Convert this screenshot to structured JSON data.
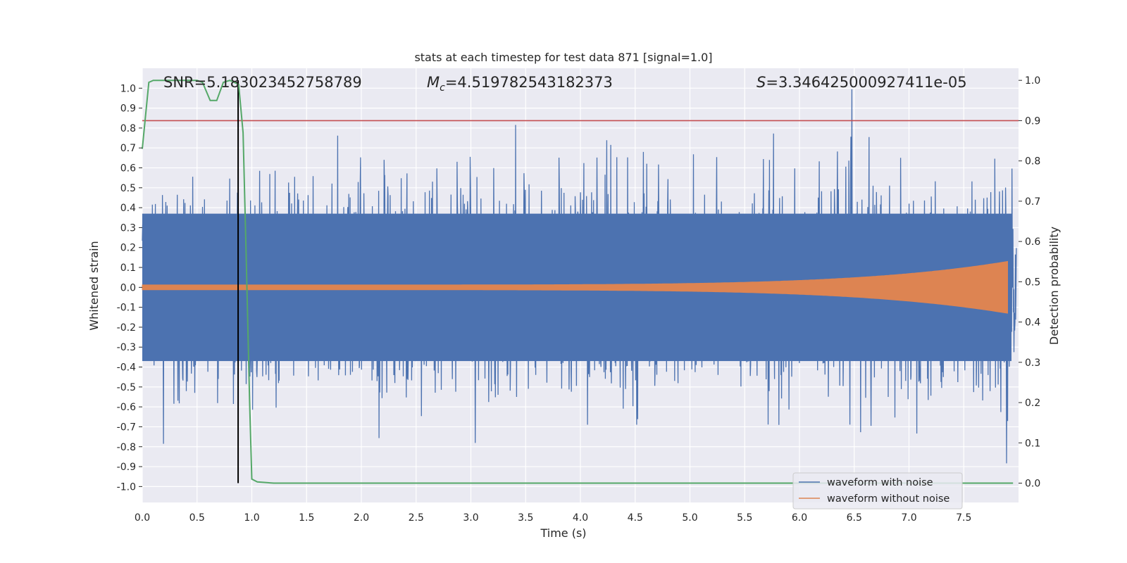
{
  "chart_data": {
    "type": "line",
    "title": "stats at each timestep for test data 871 [signal=1.0]",
    "xlabel": "Time (s)",
    "ylabel_left": "Whitened strain",
    "ylabel_right": "Detection probability",
    "xlim": [
      0.0,
      8.0
    ],
    "ylim_left": [
      -1.08,
      1.1
    ],
    "ylim_right": [
      -0.048,
      1.03
    ],
    "grid": true,
    "x_ticks": [
      "0.0",
      "0.5",
      "1.0",
      "1.5",
      "2.0",
      "2.5",
      "3.0",
      "3.5",
      "4.0",
      "4.5",
      "5.0",
      "5.5",
      "6.0",
      "6.5",
      "7.0",
      "7.5"
    ],
    "left_ticks": [
      "1.0",
      "0.9",
      "0.8",
      "0.7",
      "0.6",
      "0.5",
      "0.4",
      "0.3",
      "0.2",
      "0.1",
      "0.0",
      "-0.1",
      "-0.2",
      "-0.3",
      "-0.4",
      "-0.5",
      "-0.6",
      "-0.7",
      "-0.8",
      "-0.9",
      "-1.0"
    ],
    "right_ticks": [
      "1.0",
      "0.9",
      "0.8",
      "0.7",
      "0.6",
      "0.5",
      "0.4",
      "0.3",
      "0.2",
      "0.1",
      "0.0"
    ],
    "annotations": {
      "snr": "SNR=5.183023452758789",
      "mc_symbol": "M",
      "mc_sub": "c",
      "mc_value": "=4.519782543182373",
      "s_symbol": "S",
      "s_value": "=3.346425000927411e-05"
    },
    "threshold": {
      "value": 0.9,
      "axis": "right",
      "color": "#c44e52"
    },
    "detection_time": 0.875,
    "series": [
      {
        "name": "waveform with noise",
        "axis": "left",
        "color": "#4c72b0",
        "kind": "noise",
        "approx_amplitude": 0.5,
        "peak_max": 1.0,
        "peak_min": -0.97
      },
      {
        "name": "waveform without noise",
        "axis": "left",
        "color": "#dd8452",
        "kind": "chirp",
        "start_amplitude": 0.012,
        "end_amplitude": 0.13,
        "end_time": 7.9
      },
      {
        "name": "Detection probability",
        "axis": "right",
        "color": "#55a868",
        "x": [
          0.0,
          0.06,
          0.1,
          0.2,
          0.3,
          0.4,
          0.5,
          0.55,
          0.62,
          0.68,
          0.74,
          0.8,
          0.88,
          0.92,
          0.95,
          0.98,
          1.0,
          1.05,
          1.2,
          1.5,
          2.0,
          3.0,
          4.0,
          5.0,
          6.0,
          7.0,
          7.95
        ],
        "values": [
          0.83,
          0.995,
          1.0,
          1.0,
          1.0,
          1.0,
          1.0,
          0.995,
          0.95,
          0.95,
          0.995,
          1.0,
          0.99,
          0.87,
          0.55,
          0.2,
          0.01,
          0.003,
          0.0,
          0.0,
          0.0,
          0.0,
          0.0,
          0.0,
          0.0,
          0.0,
          0.0
        ]
      }
    ],
    "legend": {
      "placement": "lower-right",
      "entries": [
        "waveform with noise",
        "waveform without noise"
      ]
    }
  }
}
